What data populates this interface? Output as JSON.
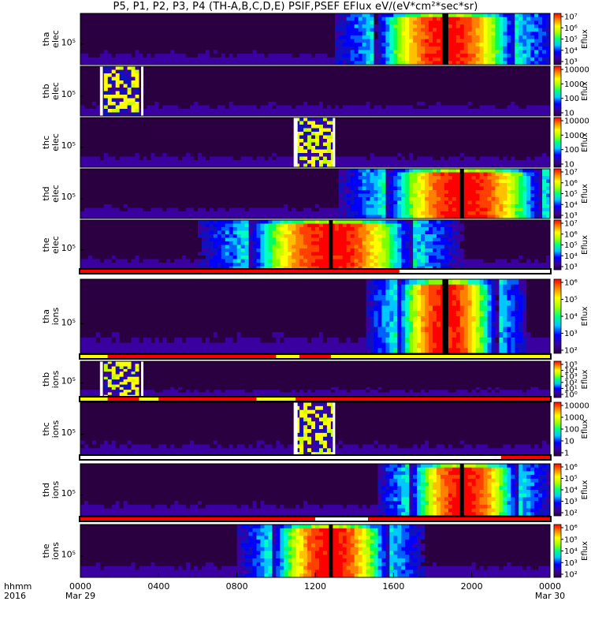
{
  "chart_data": {
    "type": "heatmap",
    "title": "P5, P1, P2, P3, P4 (TH-A,B,C,D,E) PSIF,PSEF EFlux eV/(eV*cm²*sec*sr)",
    "x_label_rows": [
      "hhmm",
      "2016"
    ],
    "x_ticks": [
      {
        "time": "0000",
        "date": "Mar 29"
      },
      {
        "time": "0400",
        "date": ""
      },
      {
        "time": "0800",
        "date": ""
      },
      {
        "time": "1200",
        "date": ""
      },
      {
        "time": "1600",
        "date": ""
      },
      {
        "time": "2000",
        "date": ""
      },
      {
        "time": "0000",
        "date": "Mar 30"
      }
    ],
    "x_range_hours": [
      0,
      24
    ],
    "colorbar_label": "Eflux",
    "panels": [
      {
        "probe": "tha",
        "species": "elec",
        "y_tick": "10⁵",
        "colorbar_ticks": [
          "10⁷",
          "10⁶",
          "10⁵",
          "10⁴",
          "10³"
        ],
        "hot_center_h": 18.7,
        "hot_halfwidth_h": 3.6,
        "gap_h": [
          18.5,
          18.8
        ],
        "burst_h": null
      },
      {
        "probe": "thb",
        "species": "elec",
        "y_tick": "10⁵",
        "colorbar_ticks": [
          "10000",
          "1000",
          "100",
          "10"
        ],
        "hot_center_h": null,
        "hot_halfwidth_h": 0,
        "gap_h": [
          1.0,
          1.15
        ],
        "burst_h": [
          1.15,
          3.1
        ]
      },
      {
        "probe": "thc",
        "species": "elec",
        "y_tick": "10⁵",
        "colorbar_ticks": [
          "10000",
          "1000",
          "100",
          "10"
        ],
        "hot_center_h": null,
        "hot_halfwidth_h": 0,
        "gap_h": [
          10.9,
          11.1
        ],
        "burst_h": [
          11.1,
          12.9
        ]
      },
      {
        "probe": "thd",
        "species": "elec",
        "y_tick": "10⁵",
        "colorbar_ticks": [
          "10⁷",
          "10⁶",
          "10⁵",
          "10⁴",
          "10³"
        ],
        "hot_center_h": 19.6,
        "hot_halfwidth_h": 4.0,
        "gap_h": [
          19.4,
          19.6
        ],
        "burst_h": null
      },
      {
        "probe": "the",
        "species": "elec",
        "y_tick": "10⁵",
        "colorbar_ticks": [
          "10⁷",
          "10⁶",
          "10⁵",
          "10⁴",
          "10³"
        ],
        "hot_center_h": 12.8,
        "hot_halfwidth_h": 4.2,
        "gap_h": [
          12.7,
          12.9
        ],
        "burst_h": null
      },
      {
        "probe": "tha",
        "species": "ions",
        "y_tick": "10⁵",
        "colorbar_ticks": [
          "10⁶",
          "10⁵",
          "10⁴",
          "10³",
          "10²"
        ],
        "hot_center_h": 18.7,
        "hot_halfwidth_h": 2.6,
        "gap_h": [
          18.5,
          18.8
        ],
        "burst_h": null
      },
      {
        "probe": "thb",
        "species": "ions",
        "y_tick": "10⁵",
        "colorbar_ticks": [
          "10⁵",
          "10⁴",
          "10³",
          "10²",
          "10¹",
          "10⁰"
        ],
        "hot_center_h": null,
        "hot_halfwidth_h": 0,
        "gap_h": [
          1.0,
          1.15
        ],
        "burst_h": [
          1.15,
          3.1
        ]
      },
      {
        "probe": "thc",
        "species": "ions",
        "y_tick": "10⁵",
        "colorbar_ticks": [
          "10000",
          "1000",
          "100",
          "10",
          "1"
        ],
        "hot_center_h": null,
        "hot_halfwidth_h": 0,
        "gap_h": [
          10.9,
          11.1
        ],
        "burst_h": [
          11.1,
          12.9
        ]
      },
      {
        "probe": "thd",
        "species": "ions",
        "y_tick": "10⁵",
        "colorbar_ticks": [
          "10⁶",
          "10⁵",
          "10⁴",
          "10³",
          "10²"
        ],
        "hot_center_h": 19.6,
        "hot_halfwidth_h": 2.8,
        "gap_h": [
          19.4,
          19.6
        ],
        "burst_h": null
      },
      {
        "probe": "the",
        "species": "ions",
        "y_tick": "10⁵",
        "colorbar_ticks": [
          "10⁶",
          "10⁵",
          "10⁴",
          "10³",
          "10²"
        ],
        "hot_center_h": 12.8,
        "hot_halfwidth_h": 3.0,
        "gap_h": [
          12.7,
          12.9
        ],
        "burst_h": null
      }
    ],
    "mode_bars": [
      {
        "after_panel": 4,
        "segments": [
          {
            "start_h": 0,
            "end_h": 16.3,
            "color": "#ff0000"
          },
          {
            "start_h": 16.3,
            "end_h": 24,
            "color": "#ffffff"
          }
        ]
      },
      {
        "after_panel": 5,
        "segments": [
          {
            "start_h": 0,
            "end_h": 1.4,
            "color": "#ffff00"
          },
          {
            "start_h": 1.4,
            "end_h": 10.0,
            "color": "#ff0000"
          },
          {
            "start_h": 10.0,
            "end_h": 11.2,
            "color": "#ffff00"
          },
          {
            "start_h": 11.2,
            "end_h": 12.8,
            "color": "#ff0000"
          },
          {
            "start_h": 12.8,
            "end_h": 24,
            "color": "#ffff00"
          }
        ]
      },
      {
        "after_panel": 6,
        "segments": [
          {
            "start_h": 0,
            "end_h": 1.4,
            "color": "#ffff00"
          },
          {
            "start_h": 1.4,
            "end_h": 3.0,
            "color": "#ff0000"
          },
          {
            "start_h": 3.0,
            "end_h": 4.0,
            "color": "#ffff00"
          },
          {
            "start_h": 4.0,
            "end_h": 9.0,
            "color": "#ff0000"
          },
          {
            "start_h": 9.0,
            "end_h": 11.0,
            "color": "#ffff00"
          },
          {
            "start_h": 11.0,
            "end_h": 24,
            "color": "#ff0000"
          }
        ]
      },
      {
        "after_panel": 7,
        "segments": [
          {
            "start_h": 0,
            "end_h": 21.5,
            "color": "#ffffff"
          },
          {
            "start_h": 21.5,
            "end_h": 24,
            "color": "#ff0000"
          }
        ]
      },
      {
        "after_panel": 8,
        "segments": [
          {
            "start_h": 0,
            "end_h": 12.0,
            "color": "#ff0000"
          },
          {
            "start_h": 12.0,
            "end_h": 14.7,
            "color": "#ffffff"
          },
          {
            "start_h": 14.7,
            "end_h": 24,
            "color": "#ff0000"
          }
        ]
      }
    ]
  }
}
